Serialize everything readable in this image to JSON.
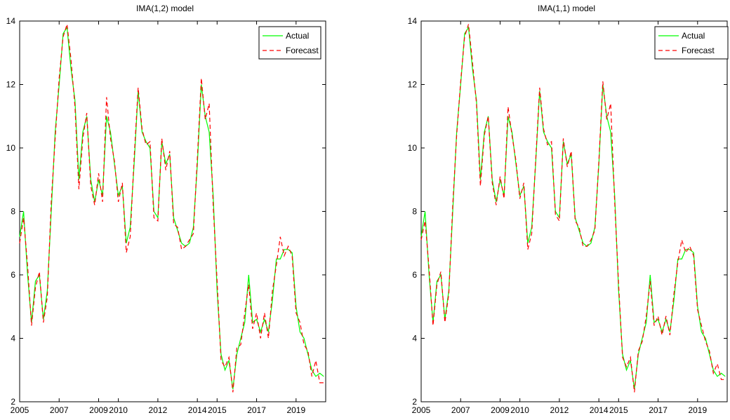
{
  "chart_data": [
    {
      "type": "line",
      "title": "IMA(1,2) model",
      "xlabel": "",
      "ylabel": "",
      "xlim": [
        2005,
        2020.5
      ],
      "ylim": [
        2,
        14
      ],
      "x_ticks": [
        "2005",
        "2007",
        "2009",
        "2010",
        "2012",
        "2014",
        "2015",
        "2017",
        "2019"
      ],
      "y_ticks": [
        "2",
        "4",
        "6",
        "8",
        "10",
        "12",
        "14"
      ],
      "grid": false,
      "legend_position": "top-right",
      "series": [
        {
          "name": "Actual",
          "color": "#00ff00",
          "style": "solid",
          "x": [
            2005.0,
            2005.2,
            2005.4,
            2005.6,
            2005.8,
            2006.0,
            2006.2,
            2006.4,
            2006.6,
            2006.8,
            2007.0,
            2007.2,
            2007.4,
            2007.6,
            2007.8,
            2008.0,
            2008.2,
            2008.4,
            2008.6,
            2008.8,
            2009.0,
            2009.2,
            2009.4,
            2009.6,
            2009.8,
            2010.0,
            2010.2,
            2010.4,
            2010.6,
            2010.8,
            2011.0,
            2011.2,
            2011.4,
            2011.6,
            2011.8,
            2012.0,
            2012.2,
            2012.4,
            2012.6,
            2012.8,
            2013.0,
            2013.2,
            2013.4,
            2013.6,
            2013.8,
            2014.0,
            2014.2,
            2014.4,
            2014.6,
            2014.8,
            2015.0,
            2015.2,
            2015.4,
            2015.6,
            2015.8,
            2016.0,
            2016.2,
            2016.4,
            2016.6,
            2016.8,
            2017.0,
            2017.2,
            2017.4,
            2017.6,
            2017.8,
            2018.0,
            2018.2,
            2018.4,
            2018.6,
            2018.8,
            2019.0,
            2019.2,
            2019.4,
            2019.6,
            2019.8,
            2020.0,
            2020.2,
            2020.4
          ],
          "values": [
            7.2,
            8.0,
            6.0,
            4.5,
            5.8,
            6.0,
            4.6,
            5.5,
            8.0,
            10.5,
            12.0,
            13.6,
            13.8,
            12.5,
            11.5,
            9.0,
            10.5,
            11.0,
            9.0,
            8.3,
            9.0,
            8.5,
            11.0,
            10.5,
            9.5,
            8.5,
            8.8,
            7.0,
            7.5,
            9.5,
            11.8,
            10.5,
            10.2,
            10.0,
            8.0,
            7.8,
            10.2,
            9.5,
            9.8,
            7.8,
            7.4,
            7.0,
            6.9,
            7.0,
            7.5,
            9.5,
            12.0,
            11.0,
            10.5,
            8.5,
            5.5,
            3.5,
            3.0,
            3.3,
            2.4,
            3.5,
            4.0,
            4.5,
            6.0,
            4.5,
            4.6,
            4.2,
            4.6,
            4.2,
            5.2,
            6.5,
            6.5,
            6.8,
            6.8,
            6.7,
            5.0,
            4.2,
            4.0,
            3.5,
            3.0,
            2.8,
            2.9,
            2.8
          ]
        },
        {
          "name": "Forecast",
          "color": "#ff0000",
          "style": "dashed",
          "x": [
            2005.0,
            2005.2,
            2005.4,
            2005.6,
            2005.8,
            2006.0,
            2006.2,
            2006.4,
            2006.6,
            2006.8,
            2007.0,
            2007.2,
            2007.4,
            2007.6,
            2007.8,
            2008.0,
            2008.2,
            2008.4,
            2008.6,
            2008.8,
            2009.0,
            2009.2,
            2009.4,
            2009.6,
            2009.8,
            2010.0,
            2010.2,
            2010.4,
            2010.6,
            2010.8,
            2011.0,
            2011.2,
            2011.4,
            2011.6,
            2011.8,
            2012.0,
            2012.2,
            2012.4,
            2012.6,
            2012.8,
            2013.0,
            2013.2,
            2013.4,
            2013.6,
            2013.8,
            2014.0,
            2014.2,
            2014.4,
            2014.6,
            2014.8,
            2015.0,
            2015.2,
            2015.4,
            2015.6,
            2015.8,
            2016.0,
            2016.2,
            2016.4,
            2016.6,
            2016.8,
            2017.0,
            2017.2,
            2017.4,
            2017.6,
            2017.8,
            2018.0,
            2018.2,
            2018.4,
            2018.6,
            2018.8,
            2019.0,
            2019.2,
            2019.4,
            2019.6,
            2019.8,
            2020.0,
            2020.2,
            2020.4
          ],
          "values": [
            7.0,
            7.8,
            6.3,
            4.4,
            5.6,
            6.1,
            4.5,
            5.3,
            8.3,
            10.3,
            12.2,
            13.5,
            13.9,
            12.8,
            11.3,
            8.7,
            10.3,
            11.1,
            8.8,
            8.2,
            9.2,
            8.3,
            11.6,
            10.3,
            9.6,
            8.3,
            8.9,
            6.7,
            7.2,
            9.7,
            11.9,
            10.6,
            10.1,
            10.2,
            7.8,
            7.7,
            10.3,
            9.3,
            9.9,
            7.6,
            7.5,
            6.8,
            6.9,
            7.1,
            7.3,
            9.7,
            12.2,
            10.9,
            11.4,
            8.2,
            5.8,
            3.3,
            3.1,
            3.4,
            2.3,
            3.7,
            3.8,
            4.8,
            5.7,
            4.3,
            4.8,
            4.0,
            4.8,
            4.0,
            5.5,
            6.3,
            7.2,
            6.6,
            6.9,
            6.6,
            4.8,
            4.5,
            3.8,
            3.6,
            2.8,
            3.3,
            2.6,
            2.6
          ]
        }
      ]
    },
    {
      "type": "line",
      "title": "IMA(1,1) model",
      "xlabel": "",
      "ylabel": "",
      "xlim": [
        2005,
        2020.5
      ],
      "ylim": [
        2,
        14
      ],
      "x_ticks": [
        "2005",
        "2007",
        "2009",
        "2010",
        "2012",
        "2014",
        "2015",
        "2017",
        "2019"
      ],
      "y_ticks": [
        "2",
        "4",
        "6",
        "8",
        "10",
        "12",
        "14"
      ],
      "grid": false,
      "legend_position": "top-right",
      "series": [
        {
          "name": "Actual",
          "color": "#00ff00",
          "style": "solid",
          "x": [
            2005.0,
            2005.2,
            2005.4,
            2005.6,
            2005.8,
            2006.0,
            2006.2,
            2006.4,
            2006.6,
            2006.8,
            2007.0,
            2007.2,
            2007.4,
            2007.6,
            2007.8,
            2008.0,
            2008.2,
            2008.4,
            2008.6,
            2008.8,
            2009.0,
            2009.2,
            2009.4,
            2009.6,
            2009.8,
            2010.0,
            2010.2,
            2010.4,
            2010.6,
            2010.8,
            2011.0,
            2011.2,
            2011.4,
            2011.6,
            2011.8,
            2012.0,
            2012.2,
            2012.4,
            2012.6,
            2012.8,
            2013.0,
            2013.2,
            2013.4,
            2013.6,
            2013.8,
            2014.0,
            2014.2,
            2014.4,
            2014.6,
            2014.8,
            2015.0,
            2015.2,
            2015.4,
            2015.6,
            2015.8,
            2016.0,
            2016.2,
            2016.4,
            2016.6,
            2016.8,
            2017.0,
            2017.2,
            2017.4,
            2017.6,
            2017.8,
            2018.0,
            2018.2,
            2018.4,
            2018.6,
            2018.8,
            2019.0,
            2019.2,
            2019.4,
            2019.6,
            2019.8,
            2020.0,
            2020.2,
            2020.4
          ],
          "values": [
            7.2,
            8.0,
            6.0,
            4.5,
            5.8,
            6.0,
            4.6,
            5.5,
            8.0,
            10.5,
            12.0,
            13.6,
            13.8,
            12.5,
            11.5,
            9.0,
            10.5,
            11.0,
            9.0,
            8.3,
            9.0,
            8.5,
            11.0,
            10.5,
            9.5,
            8.5,
            8.8,
            7.0,
            7.5,
            9.5,
            11.8,
            10.5,
            10.2,
            10.0,
            8.0,
            7.8,
            10.2,
            9.5,
            9.8,
            7.8,
            7.4,
            7.0,
            6.9,
            7.0,
            7.5,
            9.5,
            12.0,
            11.0,
            10.5,
            8.5,
            5.5,
            3.5,
            3.0,
            3.3,
            2.4,
            3.5,
            4.0,
            4.5,
            6.0,
            4.5,
            4.6,
            4.2,
            4.6,
            4.2,
            5.2,
            6.5,
            6.5,
            6.8,
            6.8,
            6.7,
            5.0,
            4.2,
            4.0,
            3.5,
            3.0,
            2.8,
            2.9,
            2.8
          ]
        },
        {
          "name": "Forecast",
          "color": "#ff0000",
          "style": "dashed",
          "x": [
            2005.0,
            2005.2,
            2005.4,
            2005.6,
            2005.8,
            2006.0,
            2006.2,
            2006.4,
            2006.6,
            2006.8,
            2007.0,
            2007.2,
            2007.4,
            2007.6,
            2007.8,
            2008.0,
            2008.2,
            2008.4,
            2008.6,
            2008.8,
            2009.0,
            2009.2,
            2009.4,
            2009.6,
            2009.8,
            2010.0,
            2010.2,
            2010.4,
            2010.6,
            2010.8,
            2011.0,
            2011.2,
            2011.4,
            2011.6,
            2011.8,
            2012.0,
            2012.2,
            2012.4,
            2012.6,
            2012.8,
            2013.0,
            2013.2,
            2013.4,
            2013.6,
            2013.8,
            2014.0,
            2014.2,
            2014.4,
            2014.6,
            2014.8,
            2015.0,
            2015.2,
            2015.4,
            2015.6,
            2015.8,
            2016.0,
            2016.2,
            2016.4,
            2016.6,
            2016.8,
            2017.0,
            2017.2,
            2017.4,
            2017.6,
            2017.8,
            2018.0,
            2018.2,
            2018.4,
            2018.6,
            2018.8,
            2019.0,
            2019.2,
            2019.4,
            2019.6,
            2019.8,
            2020.0,
            2020.2,
            2020.4
          ],
          "values": [
            7.1,
            7.7,
            6.2,
            4.4,
            5.7,
            6.1,
            4.5,
            5.4,
            8.2,
            10.4,
            12.1,
            13.5,
            13.9,
            12.7,
            11.4,
            8.8,
            10.4,
            11.0,
            8.9,
            8.2,
            9.1,
            8.4,
            11.3,
            10.4,
            9.6,
            8.4,
            8.9,
            6.8,
            7.3,
            9.6,
            11.9,
            10.6,
            10.1,
            10.2,
            7.9,
            7.7,
            10.3,
            9.4,
            9.9,
            7.7,
            7.5,
            6.9,
            6.9,
            7.1,
            7.4,
            9.6,
            12.1,
            10.9,
            11.4,
            8.3,
            5.7,
            3.4,
            3.1,
            3.4,
            2.3,
            3.6,
            3.9,
            4.7,
            5.8,
            4.4,
            4.7,
            4.1,
            4.7,
            4.1,
            5.4,
            6.4,
            7.1,
            6.7,
            6.9,
            6.6,
            4.9,
            4.4,
            3.9,
            3.6,
            2.9,
            3.2,
            2.7,
            2.7
          ]
        }
      ]
    }
  ]
}
